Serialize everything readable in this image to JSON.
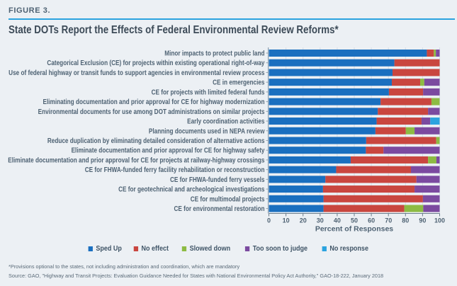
{
  "header": {
    "figure_label": "FIGURE 3.",
    "title": "State DOTs Report the Effects of Federal Environmental Review Reforms*"
  },
  "colors": {
    "sped_up": "#1a6fbf",
    "no_effect": "#c9463f",
    "slowed_down": "#8dbb43",
    "too_soon": "#7b4aa0",
    "no_response": "#2ba3df",
    "accent_rule": "#2ba3df"
  },
  "chart_data": {
    "type": "bar",
    "orientation": "horizontal",
    "stacked": true,
    "title": "State DOTs Report the Effects of Federal Environmental Review Reforms*",
    "xlabel": "Percent of Responses",
    "ylabel": "",
    "xlim": [
      0,
      100
    ],
    "xticks": [
      "0",
      "10",
      "20",
      "30",
      "40",
      "50",
      "60",
      "70",
      "80",
      "90",
      "100"
    ],
    "grid": true,
    "legend_position": "bottom",
    "categories": [
      "Minor impacts to protect public land",
      "Categorical Exclusion (CE) for projects within existing operational right-of-way",
      "Use of federal highway or transit funds to support agencies in environmental review process",
      "CE in emergencies",
      "CE for projects with limited federal funds",
      "Eliminating documentation and prior approval for CE for highway modernization",
      "Environmental documents for use among DOT administrations on similar projects",
      "Early coordination activities",
      "Planning documents used in NEPA review",
      "Reduce duplication by eliminating detailed consideration of alternative actions",
      "Eliminate documentation and prior approval for CE for highway safety",
      "Eliminate documentation and prior approval for CE for projects at railway-highway crossings",
      "CE for FHWA-funded ferry facility rehabilitation or reconstruction",
      "CE for FHWA-funded ferry vessels",
      "CE for geotechnical and archeological investigations",
      "CE for multimodal projects",
      "CE for environmental restoration"
    ],
    "series": [
      {
        "name": "Sped Up",
        "key": "sped_up",
        "values": [
          92.5,
          73.5,
          72.4,
          72,
          70.3,
          65.4,
          63.8,
          63.1,
          62.4,
          57,
          56.8,
          47.9,
          39.4,
          33.1,
          31.7,
          32,
          32
        ]
      },
      {
        "name": "No effect",
        "key": "no_effect",
        "values": [
          4.1,
          26.5,
          27.6,
          16.6,
          20,
          29.8,
          29.4,
          26.3,
          17.8,
          41,
          10.3,
          45.3,
          43.8,
          53.3,
          53.6,
          58.2,
          47.3
        ]
      },
      {
        "name": "Slowed down",
        "key": "slowed_down",
        "values": [
          1.2,
          0,
          0,
          2.4,
          0,
          4.8,
          0,
          0,
          5.1,
          2,
          0,
          4.9,
          0,
          0,
          0,
          0,
          11.1
        ]
      },
      {
        "name": "Too soon to judge",
        "key": "too_soon",
        "values": [
          2.2,
          0,
          0,
          9,
          9.7,
          0,
          6.8,
          5.1,
          14.7,
          0,
          32.9,
          1.9,
          16.8,
          13.6,
          14.7,
          9.8,
          9.6
        ]
      },
      {
        "name": "No response",
        "key": "no_response",
        "values": [
          0,
          0,
          0,
          0,
          0,
          0,
          0,
          5.5,
          0,
          0,
          0,
          0,
          0,
          0,
          0,
          0,
          0
        ]
      }
    ]
  },
  "legend": [
    {
      "label": "Sped Up",
      "key": "sped_up"
    },
    {
      "label": "No effect",
      "key": "no_effect"
    },
    {
      "label": "Slowed down",
      "key": "slowed_down"
    },
    {
      "label": "Too soon to judge",
      "key": "too_soon"
    },
    {
      "label": "No response",
      "key": "no_response"
    }
  ],
  "footer": {
    "note": "*Provisions optional to the states, not including administration and coordination, which are mandatory",
    "source": "Source: GAO, \"Highway and Transit Projects: Evaluation Guidance Needed for States with National Environmental Policy Act Authority,\" GAO-18-222, January 2018"
  }
}
